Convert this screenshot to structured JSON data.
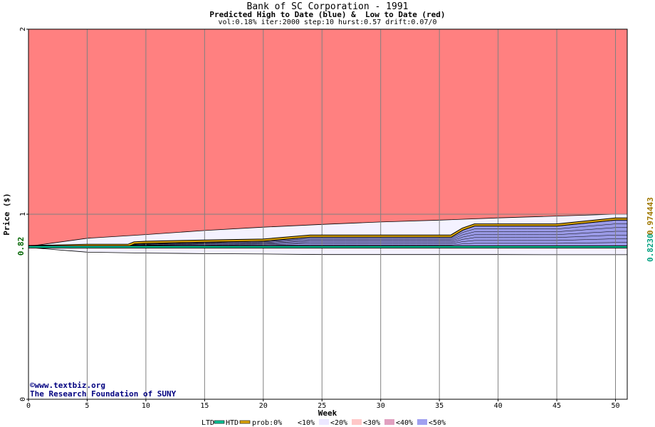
{
  "chart_data": {
    "type": "area",
    "title": "Bank of SC Corporation - 1991",
    "subtitle": "Predicted High to Date (blue) &  Low to Date (red)",
    "params": "vol:0.18% iter:2000 step:10 hurst:0.57 drift:0.07/0",
    "xlabel": "Week",
    "ylabel": "Price ($)",
    "xlim": [
      0,
      51
    ],
    "ylim": [
      0,
      2
    ],
    "x_ticks": [
      0,
      5,
      10,
      15,
      20,
      25,
      30,
      35,
      40,
      45,
      50
    ],
    "y_ticks": [
      0,
      1,
      2
    ],
    "start_price_label": "0.82",
    "right_labels": {
      "ltd": "0.8230",
      "htd": "0.974443"
    },
    "colors": {
      "region_red": "#ff8080",
      "region_light": "#f4f2ff",
      "band_blue": "#9a9ae6",
      "ltd_line": "#00c89a",
      "htd_line": "#e0a800",
      "grid": "#808080"
    },
    "series": [
      {
        "name": "HTD",
        "x": [
          0,
          5,
          8.5,
          9,
          10,
          15,
          20,
          24,
          30,
          36,
          37,
          38,
          45,
          50,
          51
        ],
        "values": [
          0.825,
          0.832,
          0.832,
          0.845,
          0.848,
          0.855,
          0.86,
          0.882,
          0.882,
          0.882,
          0.92,
          0.942,
          0.942,
          0.974,
          0.974
        ]
      },
      {
        "name": "LTD",
        "x": [
          0,
          51
        ],
        "values": [
          0.823,
          0.823
        ]
      }
    ],
    "band_upper": {
      "x": [
        0,
        5,
        10,
        15,
        20,
        25,
        30,
        35,
        40,
        45,
        50,
        51
      ],
      "values": [
        0.826,
        0.87,
        0.89,
        0.912,
        0.93,
        0.945,
        0.958,
        0.968,
        0.98,
        0.99,
        1.0,
        1.0
      ]
    },
    "band_lower": {
      "x": [
        0,
        5,
        10,
        15,
        20,
        25,
        30,
        35,
        40,
        45,
        50,
        51
      ],
      "values": [
        0.82,
        0.795,
        0.79,
        0.787,
        0.785,
        0.782,
        0.782,
        0.782,
        0.782,
        0.781,
        0.781,
        0.781
      ]
    }
  },
  "credit": {
    "copyright": "©www.textbiz.org",
    "org": "The Research Foundation of SUNY"
  },
  "legend": {
    "ltd": "LTD",
    "htd": "HTD",
    "prob": "prob:0%",
    "b10": "<10%",
    "b20": "<20%",
    "b30": "<30%",
    "b40": "<40%",
    "b50": "<50%"
  }
}
